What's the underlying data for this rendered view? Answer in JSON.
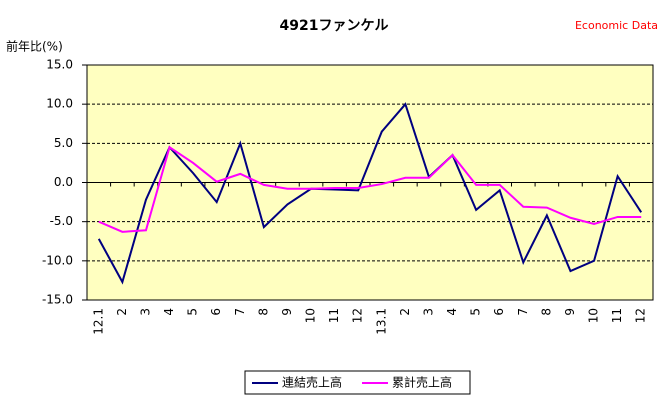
{
  "chart_data": {
    "type": "line",
    "title": "4921ファンケル",
    "y_label": "前年比(%)",
    "annotation": "Economic Data",
    "categories": [
      "12.1",
      "2",
      "3",
      "4",
      "5",
      "6",
      "7",
      "8",
      "9",
      "10",
      "11",
      "12",
      "13.1",
      "2",
      "3",
      "4",
      "5",
      "6",
      "7",
      "8",
      "9",
      "10",
      "11",
      "12"
    ],
    "series": [
      {
        "name": "連結売上高",
        "color": "#000080",
        "values": [
          -7.2,
          -12.7,
          -2.2,
          4.5,
          1.2,
          -2.5,
          5.0,
          -5.7,
          -2.8,
          -0.8,
          -0.9,
          -1.0,
          6.5,
          10.0,
          0.7,
          3.5,
          -3.5,
          -1.0,
          -10.2,
          -4.2,
          -11.3,
          -10.0,
          0.8,
          -3.8
        ]
      },
      {
        "name": "累計売上高",
        "color": "#ff00ff",
        "values": [
          -5.0,
          -6.3,
          -6.1,
          4.5,
          2.5,
          0.1,
          1.1,
          -0.3,
          -0.8,
          -0.8,
          -0.7,
          -0.7,
          -0.2,
          0.6,
          0.6,
          3.5,
          -0.3,
          -0.3,
          -3.1,
          -3.2,
          -4.5,
          -5.3,
          -4.4,
          -4.4
        ]
      }
    ],
    "ylim": [
      -15,
      15
    ],
    "yticks": [
      {
        "value": 15,
        "label": "15.0"
      },
      {
        "value": 10,
        "label": "10.0"
      },
      {
        "value": 5,
        "label": "5.0"
      },
      {
        "value": 0,
        "label": "0.0"
      },
      {
        "value": -5,
        "label": "-5.0"
      },
      {
        "value": -10,
        "label": "-10.0"
      },
      {
        "value": -15,
        "label": "-15.0"
      }
    ],
    "grid": true,
    "legend": "bottom",
    "plot_background": "#ffffc0"
  }
}
